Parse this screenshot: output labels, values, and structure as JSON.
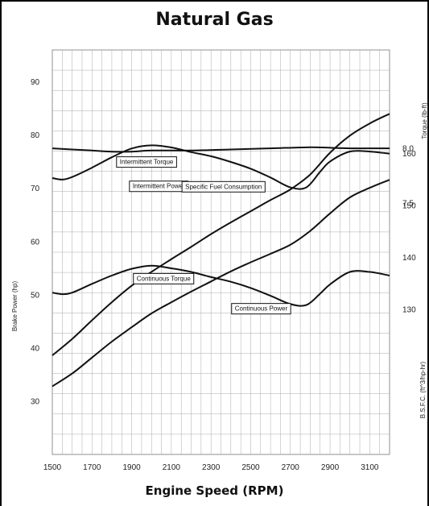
{
  "chart_data": {
    "type": "line",
    "title": "Natural Gas",
    "xlabel": "Engine Speed (RPM)",
    "ylabel_left": "Brake Power (hp)",
    "ylabel_right_torque": "Torque (lb-ft)",
    "ylabel_right_bsfc": "B.S.F.C. (ft^3/hp-hr)",
    "x_ticks": [
      "1500",
      "1700",
      "1900",
      "2100",
      "2300",
      "2500",
      "2700",
      "2900",
      "3100"
    ],
    "power_ticks": [
      "30",
      "40",
      "50",
      "60",
      "70",
      "80",
      "90"
    ],
    "torque_ticks": [
      "130",
      "140",
      "150",
      "160"
    ],
    "bsfc_ticks": [
      "7.5",
      "8.0"
    ],
    "xlim": [
      1500,
      3200
    ],
    "power_ylim": [
      20,
      96
    ],
    "torque_ylim": [
      102,
      180
    ],
    "bsfc_ylim": [
      5.2,
      8.9
    ],
    "grid": true,
    "series": [
      {
        "name": "Intermittent Torque",
        "axis": "torque",
        "x": [
          1500,
          1550,
          1600,
          1700,
          1800,
          1900,
          2000,
          2100,
          2200,
          2300,
          2400,
          2500,
          2600,
          2700,
          2780,
          2850,
          2900,
          3000,
          3100,
          3200
        ],
        "y": [
          155.3,
          155.0,
          155.5,
          157.3,
          159.3,
          161.0,
          161.6,
          161.2,
          160.3,
          159.5,
          158.4,
          157.1,
          155.4,
          153.5,
          153.5,
          156.5,
          158.5,
          160.4,
          160.4,
          160.0
        ]
      },
      {
        "name": "Continuous Torque",
        "axis": "torque",
        "x": [
          1500,
          1550,
          1600,
          1700,
          1800,
          1900,
          2000,
          2100,
          2200,
          2300,
          2400,
          2500,
          2600,
          2700,
          2780,
          2850,
          2900,
          3000,
          3100,
          3200
        ],
        "y": [
          133.2,
          132.9,
          133.2,
          134.9,
          136.5,
          137.8,
          138.4,
          137.9,
          137.2,
          136.2,
          135.3,
          134.1,
          132.6,
          131.0,
          130.8,
          133.0,
          134.8,
          137.2,
          137.2,
          136.5
        ]
      },
      {
        "name": "Intermittent Power",
        "axis": "power",
        "x": [
          1500,
          1600,
          1700,
          1800,
          1900,
          2000,
          2100,
          2200,
          2300,
          2400,
          2500,
          2600,
          2700,
          2800,
          2900,
          3000,
          3100,
          3200
        ],
        "y": [
          38.6,
          41.7,
          45.2,
          48.6,
          51.7,
          54.3,
          56.7,
          59.0,
          61.4,
          63.6,
          65.7,
          67.8,
          69.8,
          72.6,
          76.7,
          79.9,
          82.2,
          84.0
        ]
      },
      {
        "name": "Continuous Power",
        "axis": "power",
        "x": [
          1500,
          1600,
          1700,
          1800,
          1900,
          2000,
          2100,
          2200,
          2300,
          2400,
          2500,
          2600,
          2700,
          2800,
          2900,
          3000,
          3100,
          3200
        ],
        "y": [
          32.8,
          35.2,
          38.2,
          41.2,
          43.9,
          46.5,
          48.6,
          50.6,
          52.5,
          54.4,
          56.1,
          57.7,
          59.4,
          62.0,
          65.3,
          68.3,
          70.1,
          71.6
        ]
      },
      {
        "name": "Specific Fuel Consumption",
        "axis": "bsfc",
        "x": [
          1500,
          1600,
          1700,
          1800,
          1900,
          2000,
          2200,
          2400,
          2600,
          2800,
          3000,
          3200
        ],
        "y": [
          8.0,
          7.99,
          7.98,
          7.97,
          7.97,
          7.98,
          7.98,
          7.99,
          8.0,
          8.01,
          8.0,
          8.0
        ]
      }
    ]
  }
}
